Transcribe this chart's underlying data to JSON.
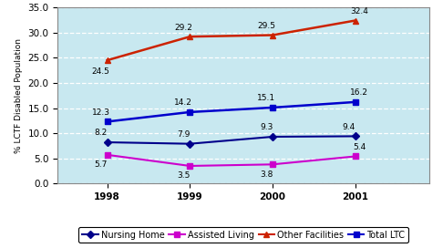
{
  "years": [
    1998,
    1999,
    2000,
    2001
  ],
  "series": [
    {
      "label": "Nursing Home",
      "values": [
        8.2,
        7.9,
        9.3,
        9.4
      ],
      "color": "#00008B",
      "marker": "D",
      "markersize": 4,
      "linewidth": 1.5,
      "zorder": 3
    },
    {
      "label": "Assisted Living",
      "values": [
        5.7,
        3.5,
        3.8,
        5.4
      ],
      "color": "#CC00CC",
      "marker": "s",
      "markersize": 4,
      "linewidth": 1.5,
      "zorder": 3
    },
    {
      "label": "Other Facilities",
      "values": [
        24.5,
        29.2,
        29.5,
        32.4
      ],
      "color": "#CC2200",
      "marker": "^",
      "markersize": 5,
      "linewidth": 1.8,
      "zorder": 3
    },
    {
      "label": "Total LTC",
      "values": [
        12.3,
        14.2,
        15.1,
        16.2
      ],
      "color": "#0000CC",
      "marker": "s",
      "markersize": 5,
      "linewidth": 1.8,
      "zorder": 3
    }
  ],
  "label_offsets": [
    [
      [
        -5,
        4
      ],
      [
        -5,
        4
      ],
      [
        -5,
        4
      ],
      [
        -5,
        4
      ]
    ],
    [
      [
        -5,
        -11
      ],
      [
        -5,
        -11
      ],
      [
        -5,
        -11
      ],
      [
        3,
        4
      ]
    ],
    [
      [
        -5,
        -12
      ],
      [
        -5,
        4
      ],
      [
        -5,
        4
      ],
      [
        3,
        4
      ]
    ],
    [
      [
        -5,
        4
      ],
      [
        -5,
        4
      ],
      [
        -5,
        4
      ],
      [
        3,
        4
      ]
    ]
  ],
  "ylabel": "% LCTF Disabled Population",
  "ylim": [
    0.0,
    35.0
  ],
  "yticks": [
    0.0,
    5.0,
    10.0,
    15.0,
    20.0,
    25.0,
    30.0,
    35.0
  ],
  "xlim": [
    1997.4,
    2001.9
  ],
  "xticks": [
    1998,
    1999,
    2000,
    2001
  ],
  "plot_bg": "#C8E8F0",
  "fig_bg": "#FFFFFF",
  "grid_color": "#FFFFFF",
  "fontsize_label": 6.5,
  "fontsize_annot": 6.5,
  "fontsize_tick": 7.5,
  "fontsize_legend": 7
}
